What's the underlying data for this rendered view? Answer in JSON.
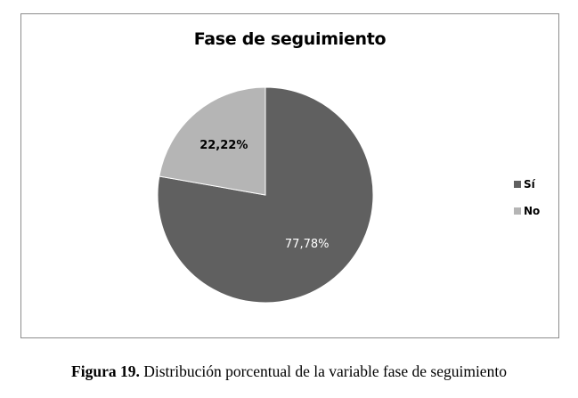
{
  "chart_data": {
    "type": "pie",
    "title": "Fase de seguimiento",
    "slices": [
      {
        "label": "Sí",
        "value": 77.78,
        "display": "77,78%",
        "color": "#606060"
      },
      {
        "label": "No",
        "value": 22.22,
        "display": "22,22%",
        "color": "#b5b5b5"
      }
    ],
    "legend_position": "right"
  },
  "caption": {
    "label": "Figura 19.",
    "text": "Distribución porcentual de la variable fase de seguimiento"
  }
}
